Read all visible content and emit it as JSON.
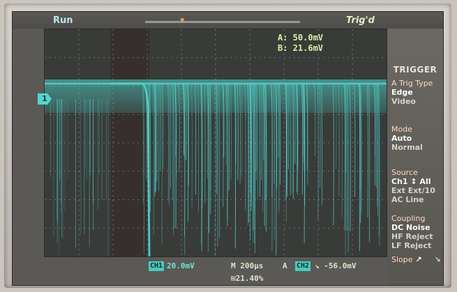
{
  "status": {
    "run_state": "Run",
    "trigger_state": "Trig'd"
  },
  "cursors": {
    "a": "A:  50.0mV",
    "b": "B:  21.6mV"
  },
  "channel_marker": "1",
  "menu": {
    "title": "TRIGGER",
    "trig_type": {
      "label": "A Trig Type",
      "options": [
        "Edge",
        "Video"
      ]
    },
    "mode": {
      "label": "Mode",
      "options": [
        "Auto",
        "Normal"
      ]
    },
    "source": {
      "label": "Source",
      "options": [
        "Ch1 ↕ All",
        "Ext Ext/10",
        "AC Line"
      ]
    },
    "coupling": {
      "label": "Coupling",
      "options": [
        "DC   Noise",
        "HF Reject",
        "LF Reject"
      ]
    },
    "slope": {
      "label": "Slope",
      "options": [
        "↗",
        "↘"
      ]
    }
  },
  "readout": {
    "ch1_badge": "CH1",
    "ch1_scale": "20.0mV",
    "timebase": "M 200μs",
    "trig_src_label": "A",
    "ch2_badge": "CH2",
    "trig_level": "↘ -56.0mV",
    "trig_pct": "⊞21.40%"
  },
  "colors": {
    "trace": "#4fd7cf",
    "grid": "#9aa3a0",
    "menu_bg": "#5f5e58",
    "readout": "#d9f0a0"
  }
}
